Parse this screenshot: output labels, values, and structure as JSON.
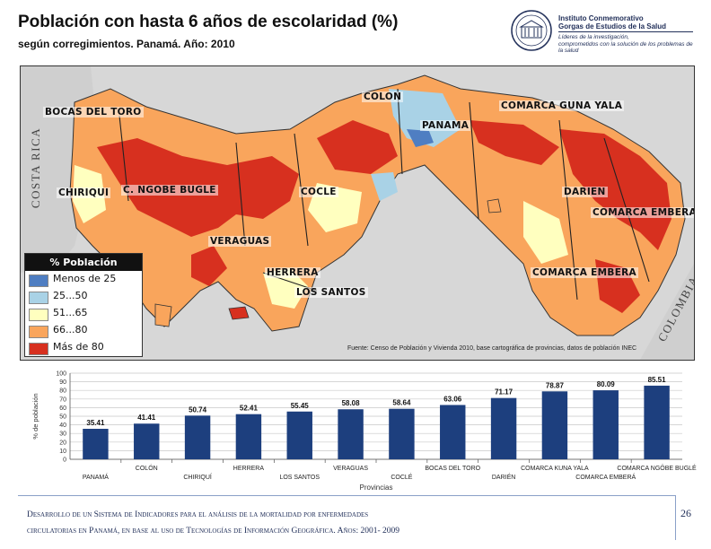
{
  "header": {
    "title": "Población con hasta 6 años de escolaridad (%)",
    "subtitle": "según corregimientos. Panamá. Año: 2010"
  },
  "logo": {
    "line1": "Instituto Conmemorativo",
    "line2": "Gorgas de Estudios de la Salud",
    "line3": "Líderes de la investigación,",
    "line4": "comprometidos con la solución de los problemas de la salud"
  },
  "map": {
    "province_labels": [
      "BOCAS DEL TORO",
      "COLON",
      "PANAMA",
      "COMARCA GUNA YALA",
      "CHIRIQUI",
      "C. NGOBE BUGLE",
      "COCLE",
      "DARIEN",
      "COMARCA EMBERA",
      "VERAGUAS",
      "HERRERA",
      "LOS SANTOS",
      "COMARCA EMBERA"
    ],
    "country_labels": [
      "COSTA RICA",
      "COLOMBIA"
    ],
    "legend": {
      "title": "% Población",
      "items": [
        {
          "label": "Menos de 25",
          "color": "#4f7ec2"
        },
        {
          "label": "25...50",
          "color": "#a9d2e6"
        },
        {
          "label": "51...65",
          "color": "#ffffbf"
        },
        {
          "label": "66...80",
          "color": "#f9a55c"
        },
        {
          "label": "Más de 80",
          "color": "#d7301f"
        }
      ]
    },
    "source": "Fuente: Censo de Población y Vivienda 2010, base cartográfica de provincias, datos de población INEC"
  },
  "chart_data": {
    "type": "bar",
    "categories": [
      "PANAMÁ",
      "COLÓN",
      "CHIRIQUÍ",
      "HERRERA",
      "LOS SANTOS",
      "VERAGUAS",
      "COCLÉ",
      "BOCAS DEL TORO",
      "DARIÉN",
      "COMARCA KUNA YALA",
      "COMARCA EMBERÁ",
      "COMARCA NGÖBE BUGLÉ"
    ],
    "values": [
      35.41,
      41.41,
      50.74,
      52.41,
      55.45,
      58.08,
      58.64,
      63.06,
      71.17,
      78.87,
      80.09,
      85.51
    ],
    "value_labels": [
      "35.41",
      "41.41",
      "50.74",
      "52.41",
      "55.45",
      "58.08",
      "58.64",
      "63.06",
      "71.17",
      "78.87",
      "80.09",
      "85.51"
    ],
    "ylabel": "% de población",
    "xlabel": "Provincias",
    "ylim": [
      0,
      100
    ],
    "yticks": [
      "0",
      "10",
      "20",
      "30",
      "40",
      "50",
      "60",
      "70",
      "80",
      "90",
      "100"
    ],
    "bar_color": "#1d3f7e",
    "grid": true
  },
  "footer": {
    "line1": "Desarrollo de un Sistema de Indicadores para el análisis de la mortalidad por enfermedades",
    "line2": "circulatorias en Panamá, en base al uso de Tecnologías de Información Geográfica. Años: 2001- 2009",
    "page": "26"
  }
}
